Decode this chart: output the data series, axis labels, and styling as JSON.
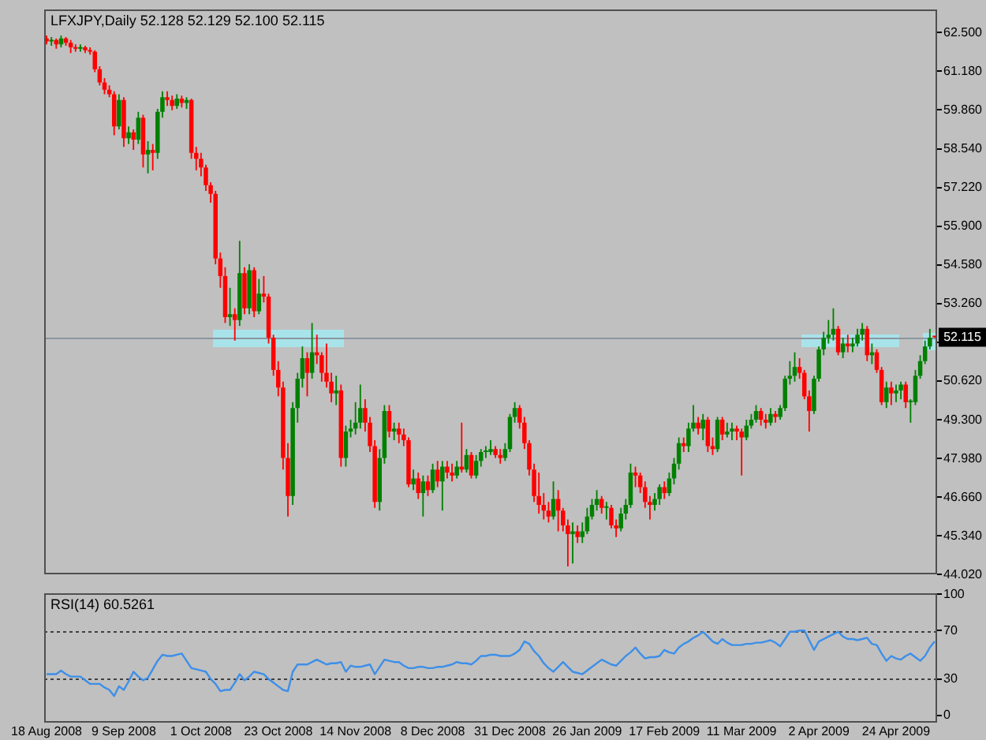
{
  "chart_data": [
    {
      "type": "candlestick",
      "title": "LFXJPY,Daily 52.128 52.129 52.100 52.115",
      "categories": [
        null,
        null,
        null,
        null,
        null,
        null,
        null,
        null,
        null,
        null,
        null,
        null,
        null,
        null,
        null,
        null,
        null,
        null,
        null,
        null,
        null,
        null,
        null,
        null,
        null,
        null,
        null,
        null,
        null,
        null,
        null,
        null,
        null,
        null,
        null,
        null,
        null,
        null,
        null,
        null,
        null,
        null,
        null,
        null,
        null,
        null,
        null,
        null,
        null,
        null,
        null,
        null,
        null,
        null,
        null,
        null,
        null,
        null,
        null,
        null,
        null,
        null,
        null,
        null,
        null,
        null,
        null,
        null,
        null,
        null,
        null,
        null,
        null,
        null,
        null,
        null,
        null,
        null,
        null,
        null,
        null,
        null,
        null,
        null,
        null,
        null,
        null,
        null,
        null,
        null,
        null,
        null,
        null,
        null,
        null,
        null,
        null,
        null,
        null,
        null,
        null,
        null,
        null,
        null,
        null,
        null,
        null,
        null,
        null,
        null,
        null,
        null,
        null,
        null,
        null,
        null,
        null,
        null,
        null,
        null,
        null,
        null,
        null,
        null,
        null,
        null,
        null,
        null,
        null,
        null,
        null,
        null,
        null,
        null,
        null,
        null,
        null,
        null,
        null,
        null,
        null,
        null,
        null,
        null,
        null,
        null,
        null,
        null,
        null,
        null,
        null,
        null,
        null,
        null,
        null,
        null,
        null,
        null,
        null,
        null,
        null,
        null,
        null,
        null,
        null,
        null,
        null,
        null,
        null,
        null,
        null,
        null,
        null,
        null,
        null,
        null,
        null,
        null,
        null,
        null,
        null,
        null,
        null,
        null,
        null
      ],
      "ohlc": [
        [
          62.3,
          62.4,
          62.1,
          62.2
        ],
        [
          62.2,
          62.35,
          62.05,
          62.25
        ],
        [
          62.25,
          62.3,
          61.95,
          62.1
        ],
        [
          62.1,
          62.4,
          62.0,
          62.3
        ],
        [
          62.3,
          62.35,
          62.05,
          62.15
        ],
        [
          62.15,
          62.25,
          61.8,
          62.0
        ],
        [
          62.0,
          62.1,
          61.85,
          61.95
        ],
        [
          61.95,
          62.1,
          61.85,
          62.0
        ],
        [
          62.0,
          62.05,
          61.8,
          61.9
        ],
        [
          61.9,
          62.0,
          61.75,
          61.85
        ],
        [
          61.85,
          61.9,
          61.15,
          61.25
        ],
        [
          61.25,
          61.35,
          60.7,
          60.8
        ],
        [
          60.8,
          60.95,
          60.4,
          60.55
        ],
        [
          60.55,
          60.7,
          60.3,
          60.4
        ],
        [
          60.4,
          60.5,
          59.0,
          59.3
        ],
        [
          59.3,
          60.4,
          59.2,
          60.2
        ],
        [
          60.2,
          60.3,
          58.6,
          58.9
        ],
        [
          58.9,
          59.3,
          58.7,
          59.1
        ],
        [
          59.1,
          59.2,
          58.5,
          58.85
        ],
        [
          58.85,
          59.8,
          58.7,
          59.6
        ],
        [
          59.6,
          59.7,
          57.9,
          58.35
        ],
        [
          58.35,
          58.8,
          57.7,
          58.5
        ],
        [
          58.5,
          58.7,
          57.8,
          58.4
        ],
        [
          58.4,
          59.9,
          58.2,
          59.8
        ],
        [
          59.8,
          60.5,
          59.6,
          60.3
        ],
        [
          60.3,
          60.5,
          60.0,
          60.2
        ],
        [
          60.2,
          60.35,
          59.85,
          60.0
        ],
        [
          60.0,
          60.4,
          59.9,
          60.25
        ],
        [
          60.25,
          60.35,
          59.95,
          60.1
        ],
        [
          60.1,
          60.3,
          59.9,
          60.2
        ],
        [
          60.2,
          60.25,
          58.2,
          58.4
        ],
        [
          58.4,
          58.6,
          57.8,
          58.2
        ],
        [
          58.2,
          58.4,
          57.6,
          57.9
        ],
        [
          57.9,
          58.0,
          57.1,
          57.3
        ],
        [
          57.3,
          57.4,
          56.7,
          57.0
        ],
        [
          57.0,
          57.1,
          54.6,
          54.8
        ],
        [
          54.8,
          55.0,
          53.8,
          54.2
        ],
        [
          54.2,
          54.5,
          52.6,
          52.8
        ],
        [
          52.8,
          53.8,
          52.5,
          52.9
        ],
        [
          52.9,
          53.1,
          52.0,
          52.7
        ],
        [
          52.7,
          55.4,
          52.5,
          54.3
        ],
        [
          54.3,
          54.5,
          52.9,
          53.1
        ],
        [
          53.1,
          54.6,
          52.9,
          54.4
        ],
        [
          54.4,
          54.5,
          52.8,
          53.0
        ],
        [
          53.0,
          54.1,
          52.9,
          53.6
        ],
        [
          53.6,
          54.2,
          53.3,
          53.5
        ],
        [
          53.5,
          53.6,
          51.9,
          52.1
        ],
        [
          52.1,
          52.2,
          50.8,
          51.0
        ],
        [
          51.0,
          51.3,
          50.1,
          50.4
        ],
        [
          50.4,
          50.6,
          47.6,
          48.0
        ],
        [
          48.0,
          48.5,
          46.0,
          46.7
        ],
        [
          46.7,
          49.9,
          46.4,
          49.7
        ],
        [
          49.7,
          50.9,
          49.2,
          50.7
        ],
        [
          50.7,
          51.8,
          50.4,
          51.4
        ],
        [
          51.4,
          51.6,
          50.1,
          50.9
        ],
        [
          50.9,
          52.6,
          50.7,
          51.6
        ],
        [
          51.6,
          52.2,
          51.2,
          51.5
        ],
        [
          51.5,
          51.6,
          50.6,
          50.9
        ],
        [
          50.9,
          51.9,
          50.4,
          50.6
        ],
        [
          50.6,
          50.9,
          49.9,
          50.2
        ],
        [
          50.2,
          50.8,
          49.8,
          50.3
        ],
        [
          50.3,
          50.5,
          47.7,
          48.0
        ],
        [
          48.0,
          49.1,
          47.7,
          48.9
        ],
        [
          48.9,
          49.3,
          48.7,
          49.0
        ],
        [
          49.0,
          49.9,
          48.8,
          49.2
        ],
        [
          49.2,
          50.5,
          49.0,
          49.7
        ],
        [
          49.7,
          50.0,
          48.9,
          49.2
        ],
        [
          49.2,
          49.4,
          48.2,
          48.4
        ],
        [
          48.4,
          48.6,
          46.3,
          46.5
        ],
        [
          46.5,
          48.3,
          46.2,
          48.0
        ],
        [
          48.0,
          49.8,
          47.8,
          49.6
        ],
        [
          49.6,
          49.8,
          48.7,
          48.9
        ],
        [
          48.9,
          49.2,
          48.6,
          49.0
        ],
        [
          49.0,
          49.2,
          48.5,
          48.8
        ],
        [
          48.8,
          49.0,
          48.4,
          48.6
        ],
        [
          48.6,
          48.7,
          47.0,
          47.1
        ],
        [
          47.1,
          47.6,
          46.9,
          47.3
        ],
        [
          47.3,
          47.5,
          46.6,
          46.8
        ],
        [
          46.8,
          47.4,
          46.0,
          47.2
        ],
        [
          47.2,
          47.4,
          46.7,
          46.9
        ],
        [
          46.9,
          47.8,
          46.8,
          47.6
        ],
        [
          47.6,
          47.9,
          47.0,
          47.2
        ],
        [
          47.2,
          47.9,
          46.2,
          47.7
        ],
        [
          47.7,
          47.9,
          47.3,
          47.5
        ],
        [
          47.5,
          47.8,
          47.2,
          47.4
        ],
        [
          47.4,
          47.9,
          47.3,
          47.7
        ],
        [
          47.7,
          49.2,
          47.5,
          47.6
        ],
        [
          47.6,
          48.3,
          47.5,
          48.1
        ],
        [
          48.1,
          48.2,
          47.3,
          47.4
        ],
        [
          47.4,
          48.1,
          47.3,
          47.9
        ],
        [
          47.9,
          48.3,
          47.7,
          48.2
        ],
        [
          48.2,
          48.4,
          48.0,
          48.25
        ],
        [
          48.2,
          48.6,
          48.1,
          48.3
        ],
        [
          48.3,
          48.4,
          48.0,
          48.1
        ],
        [
          48.1,
          48.3,
          47.8,
          48.0
        ],
        [
          48.0,
          48.5,
          47.9,
          48.3
        ],
        [
          48.3,
          49.5,
          48.2,
          49.4
        ],
        [
          49.4,
          49.9,
          49.2,
          49.7
        ],
        [
          49.7,
          49.8,
          49.0,
          49.2
        ],
        [
          49.2,
          49.4,
          48.3,
          48.5
        ],
        [
          48.5,
          48.6,
          47.4,
          47.6
        ],
        [
          47.6,
          47.8,
          46.5,
          46.7
        ],
        [
          46.7,
          47.5,
          46.1,
          46.4
        ],
        [
          46.4,
          46.8,
          45.9,
          46.2
        ],
        [
          46.2,
          46.5,
          45.8,
          46.0
        ],
        [
          46.0,
          47.2,
          45.9,
          46.6
        ],
        [
          46.6,
          46.9,
          45.5,
          46.2
        ],
        [
          46.2,
          46.3,
          45.5,
          45.7
        ],
        [
          45.7,
          45.9,
          44.3,
          45.4
        ],
        [
          45.4,
          45.8,
          44.4,
          45.5
        ],
        [
          45.5,
          45.7,
          45.1,
          45.3
        ],
        [
          45.3,
          45.8,
          45.1,
          45.5
        ],
        [
          45.5,
          46.3,
          45.4,
          46.0
        ],
        [
          46.0,
          46.6,
          45.9,
          46.4
        ],
        [
          46.4,
          46.9,
          46.2,
          46.6
        ],
        [
          46.6,
          46.7,
          46.1,
          46.3
        ],
        [
          46.3,
          46.5,
          45.9,
          46.35
        ],
        [
          46.3,
          46.4,
          45.6,
          45.7
        ],
        [
          45.7,
          45.9,
          45.3,
          45.6
        ],
        [
          45.6,
          46.3,
          45.5,
          46.1
        ],
        [
          46.1,
          46.6,
          45.9,
          46.4
        ],
        [
          46.4,
          47.8,
          46.3,
          47.5
        ],
        [
          47.5,
          47.7,
          47.0,
          47.4
        ],
        [
          47.4,
          47.5,
          46.8,
          47.0
        ],
        [
          47.0,
          47.2,
          46.3,
          46.5
        ],
        [
          46.5,
          46.7,
          45.9,
          46.4
        ],
        [
          46.4,
          46.8,
          46.2,
          46.6
        ],
        [
          46.6,
          47.1,
          46.4,
          47.0
        ],
        [
          47.0,
          47.2,
          46.6,
          46.8
        ],
        [
          46.8,
          47.5,
          46.7,
          47.3
        ],
        [
          47.3,
          48.0,
          47.1,
          47.8
        ],
        [
          47.8,
          48.7,
          47.6,
          48.5
        ],
        [
          48.5,
          48.7,
          48.2,
          48.4
        ],
        [
          48.4,
          49.2,
          48.2,
          49.0
        ],
        [
          49.0,
          49.8,
          48.9,
          49.2
        ],
        [
          49.2,
          49.4,
          48.8,
          49.0
        ],
        [
          49.0,
          49.5,
          48.6,
          49.3
        ],
        [
          49.3,
          49.4,
          48.2,
          48.4
        ],
        [
          48.4,
          48.7,
          48.1,
          48.3
        ],
        [
          48.3,
          49.4,
          48.2,
          49.3
        ],
        [
          49.3,
          49.4,
          48.6,
          48.8
        ],
        [
          48.8,
          49.2,
          48.7,
          48.9
        ],
        [
          48.9,
          49.2,
          48.6,
          49.0
        ],
        [
          49.0,
          49.1,
          48.6,
          48.9
        ],
        [
          48.9,
          49.0,
          47.4,
          48.7
        ],
        [
          48.7,
          49.3,
          48.6,
          49.1
        ],
        [
          49.1,
          49.5,
          49.0,
          49.3
        ],
        [
          49.3,
          49.8,
          49.2,
          49.6
        ],
        [
          49.6,
          49.7,
          49.1,
          49.3
        ],
        [
          49.3,
          49.5,
          49.0,
          49.2
        ],
        [
          49.2,
          49.7,
          49.1,
          49.5
        ],
        [
          49.5,
          49.6,
          49.2,
          49.4
        ],
        [
          49.4,
          49.8,
          49.3,
          49.7
        ],
        [
          49.7,
          50.8,
          49.6,
          50.7
        ],
        [
          50.7,
          51.3,
          50.5,
          50.8
        ],
        [
          50.8,
          51.6,
          50.6,
          51.1
        ],
        [
          51.1,
          51.4,
          50.7,
          50.9
        ],
        [
          50.9,
          51.0,
          50.0,
          50.1
        ],
        [
          50.1,
          50.3,
          48.9,
          49.6
        ],
        [
          49.6,
          50.8,
          49.5,
          50.7
        ],
        [
          50.7,
          51.8,
          50.6,
          51.7
        ],
        [
          51.7,
          52.3,
          51.5,
          52.1
        ],
        [
          52.1,
          52.7,
          51.9,
          52.2
        ],
        [
          52.2,
          53.1,
          52.0,
          52.4
        ],
        [
          52.4,
          52.5,
          51.5,
          51.6
        ],
        [
          51.6,
          52.1,
          51.4,
          51.9
        ],
        [
          51.9,
          52.2,
          51.6,
          51.8
        ],
        [
          51.8,
          52.1,
          51.6,
          51.9
        ],
        [
          51.9,
          52.4,
          51.8,
          52.2
        ],
        [
          52.2,
          52.6,
          52.0,
          52.4
        ],
        [
          52.4,
          52.5,
          51.3,
          51.5
        ],
        [
          51.5,
          51.9,
          51.2,
          51.6
        ],
        [
          51.6,
          51.7,
          50.9,
          51.0
        ],
        [
          51.0,
          51.1,
          49.8,
          49.9
        ],
        [
          49.9,
          50.6,
          49.7,
          50.4
        ],
        [
          50.4,
          50.6,
          49.8,
          50.2
        ],
        [
          50.2,
          50.5,
          49.9,
          50.3
        ],
        [
          50.3,
          50.6,
          50.0,
          50.5
        ],
        [
          50.5,
          50.6,
          49.7,
          49.9
        ],
        [
          49.9,
          50.0,
          49.2,
          49.95
        ],
        [
          49.9,
          51.0,
          49.8,
          50.8
        ],
        [
          50.8,
          51.5,
          50.7,
          51.3
        ],
        [
          51.3,
          52.0,
          51.2,
          51.8
        ],
        [
          51.8,
          52.4,
          51.7,
          52.1
        ],
        [
          52.128,
          52.129,
          52.1,
          52.115
        ]
      ],
      "colors": [
        "#ff0000",
        "#008000",
        "#ff0000",
        "#008000",
        "#ff0000",
        "#ff0000",
        "#ff0000",
        "#008000",
        "#ff0000",
        "#ff0000",
        "#ff0000",
        "#ff0000",
        "#ff0000",
        "#ff0000",
        "#ff0000",
        "#008000",
        "#ff0000",
        "#008000",
        "#ff0000",
        "#008000",
        "#ff0000",
        "#008000",
        "#ff0000",
        "#008000",
        "#008000",
        "#ff0000",
        "#ff0000",
        "#008000",
        "#ff0000",
        "#008000",
        "#ff0000",
        "#ff0000",
        "#ff0000",
        "#ff0000",
        "#ff0000",
        "#ff0000",
        "#ff0000",
        "#ff0000",
        "#008000",
        "#ff0000",
        "#008000",
        "#ff0000",
        "#008000",
        "#ff0000",
        "#008000",
        "#ff0000",
        "#ff0000",
        "#ff0000",
        "#ff0000",
        "#ff0000",
        "#ff0000",
        "#008000",
        "#008000",
        "#008000",
        "#ff0000",
        "#008000",
        "#ff0000",
        "#ff0000",
        "#ff0000",
        "#ff0000",
        "#008000",
        "#ff0000",
        "#008000",
        "#008000",
        "#008000",
        "#008000",
        "#ff0000",
        "#ff0000",
        "#ff0000",
        "#008000",
        "#008000",
        "#ff0000",
        "#008000",
        "#ff0000",
        "#ff0000",
        "#ff0000",
        "#008000",
        "#ff0000",
        "#008000",
        "#ff0000",
        "#008000",
        "#ff0000",
        "#008000",
        "#ff0000",
        "#ff0000",
        "#008000",
        "#ff0000",
        "#008000",
        "#ff0000",
        "#008000",
        "#008000",
        "#008000",
        "#008000",
        "#ff0000",
        "#ff0000",
        "#008000",
        "#008000",
        "#008000",
        "#ff0000",
        "#ff0000",
        "#ff0000",
        "#ff0000",
        "#ff0000",
        "#ff0000",
        "#ff0000",
        "#008000",
        "#ff0000",
        "#ff0000",
        "#ff0000",
        "#008000",
        "#ff0000",
        "#008000",
        "#008000",
        "#008000",
        "#008000",
        "#ff0000",
        "#008000",
        "#ff0000",
        "#ff0000",
        "#008000",
        "#008000",
        "#008000",
        "#ff0000",
        "#ff0000",
        "#ff0000",
        "#ff0000",
        "#008000",
        "#008000",
        "#ff0000",
        "#008000",
        "#008000",
        "#008000",
        "#ff0000",
        "#008000",
        "#008000",
        "#ff0000",
        "#008000",
        "#ff0000",
        "#ff0000",
        "#008000",
        "#ff0000",
        "#008000",
        "#008000",
        "#ff0000",
        "#ff0000",
        "#008000",
        "#008000",
        "#008000",
        "#ff0000",
        "#ff0000",
        "#008000",
        "#ff0000",
        "#008000",
        "#008000",
        "#008000",
        "#008000",
        "#ff0000",
        "#ff0000",
        "#ff0000",
        "#008000",
        "#008000",
        "#008000",
        "#008000",
        "#008000",
        "#ff0000",
        "#008000",
        "#ff0000",
        "#008000",
        "#008000",
        "#008000",
        "#ff0000",
        "#008000",
        "#ff0000",
        "#ff0000",
        "#008000",
        "#ff0000",
        "#008000",
        "#008000",
        "#ff0000",
        "#008000",
        "#008000",
        "#008000",
        "#008000",
        "#008000",
        "#ff0000"
      ],
      "ylim": [
        44.02,
        63.3
      ],
      "yticks": [
        {
          "value": 62.5,
          "label": "62.500"
        },
        {
          "value": 61.18,
          "label": "61.180"
        },
        {
          "value": 59.86,
          "label": "59.860"
        },
        {
          "value": 58.54,
          "label": "58.540"
        },
        {
          "value": 57.22,
          "label": "57.220"
        },
        {
          "value": 55.9,
          "label": "55.900"
        },
        {
          "value": 54.58,
          "label": "54.580"
        },
        {
          "value": 53.26,
          "label": "53.260"
        },
        {
          "value": 51.94,
          "label": null
        },
        {
          "value": 50.62,
          "label": "50.620"
        },
        {
          "value": 49.3,
          "label": "49.300"
        },
        {
          "value": 47.98,
          "label": "47.980"
        },
        {
          "value": 46.66,
          "label": "46.660"
        },
        {
          "value": 45.34,
          "label": "45.340"
        },
        {
          "value": 44.02,
          "label": "44.020"
        }
      ],
      "ref_lines": [
        {
          "axis": "y",
          "value": 52.115,
          "label": "52.115",
          "color": "#8c96a0"
        }
      ],
      "tick_labels": "y"
    },
    {
      "type": "line",
      "title": "RSI(14) 60.5261",
      "categories": [
        "18 Aug 2008",
        null,
        null,
        null,
        null,
        null,
        null,
        null,
        null,
        null,
        null,
        null,
        null,
        null,
        null,
        null,
        "9 Sep 2008",
        null,
        null,
        null,
        null,
        null,
        null,
        null,
        null,
        null,
        null,
        null,
        null,
        null,
        null,
        null,
        "1 Oct 2008",
        null,
        null,
        null,
        null,
        null,
        null,
        null,
        null,
        null,
        null,
        null,
        null,
        null,
        null,
        null,
        "23 Oct 2008",
        null,
        null,
        null,
        null,
        null,
        null,
        null,
        null,
        null,
        null,
        null,
        null,
        null,
        null,
        null,
        "14 Nov 2008",
        null,
        null,
        null,
        null,
        null,
        null,
        null,
        null,
        null,
        null,
        null,
        null,
        null,
        null,
        null,
        "8 Dec 2008",
        null,
        null,
        null,
        null,
        null,
        null,
        null,
        null,
        null,
        null,
        null,
        null,
        null,
        null,
        null,
        "31 Dec 2008",
        null,
        null,
        null,
        null,
        null,
        null,
        null,
        null,
        null,
        null,
        null,
        null,
        null,
        null,
        null,
        "26 Jan 2009",
        null,
        null,
        null,
        null,
        null,
        null,
        null,
        null,
        null,
        null,
        null,
        null,
        null,
        null,
        null,
        "17 Feb 2009",
        null,
        null,
        null,
        null,
        null,
        null,
        null,
        null,
        null,
        null,
        null,
        null,
        null,
        null,
        null,
        "11 Mar 2009",
        null,
        null,
        null,
        null,
        null,
        null,
        null,
        null,
        null,
        null,
        null,
        null,
        null,
        null,
        null,
        "2 Apr 2009",
        null,
        null,
        null,
        null,
        null,
        null,
        null,
        null,
        null,
        null,
        null,
        null,
        null,
        null,
        null,
        "24 Apr 2009",
        null,
        null,
        null,
        null,
        null,
        null,
        null,
        null
      ],
      "series": [
        {
          "color": "#3d8fe8",
          "values": [
            34,
            34,
            34,
            37,
            34,
            32,
            32,
            32,
            29,
            26,
            26,
            26,
            23,
            21,
            16,
            24,
            21,
            28,
            36,
            32,
            29,
            31,
            38,
            45,
            50,
            49,
            49,
            50,
            51,
            45,
            39,
            38,
            37,
            36,
            30,
            26,
            20,
            21,
            21,
            27,
            34,
            29,
            32,
            36,
            35,
            34,
            30,
            27,
            24,
            21,
            20,
            36,
            42,
            42,
            42,
            44,
            46,
            44,
            42,
            43,
            43,
            44,
            36,
            41,
            40,
            40,
            41,
            42,
            34,
            40,
            46,
            45,
            44,
            44,
            41,
            39,
            39,
            40,
            40,
            39,
            39,
            40,
            40,
            41,
            42,
            44,
            43,
            43,
            42,
            45,
            49,
            49,
            50,
            50,
            49,
            49,
            49,
            51,
            54,
            61,
            59,
            53,
            49,
            43,
            39,
            36,
            40,
            44,
            40,
            36,
            35,
            34,
            37,
            40,
            43,
            46,
            44,
            42,
            41,
            45,
            49,
            52,
            56,
            51,
            47,
            48,
            48,
            49,
            54,
            52,
            51,
            56,
            59,
            61,
            64,
            66,
            69,
            65,
            61,
            59,
            63,
            60,
            58,
            58,
            58,
            59,
            59,
            60,
            60,
            61,
            62,
            60,
            57,
            63,
            69,
            69,
            70,
            70,
            62,
            54,
            61,
            63,
            65,
            67,
            69,
            65,
            63,
            63,
            62,
            63,
            64,
            59,
            58,
            51,
            45,
            49,
            47,
            46,
            49,
            51,
            48,
            45,
            49,
            56,
            61
          ]
        }
      ],
      "ylim": [
        -6,
        101
      ],
      "yticks": [
        100,
        70,
        30,
        0
      ],
      "ref_lines": [
        {
          "axis": "y",
          "value": 70,
          "line_style": "dotted",
          "color": "#404040"
        },
        {
          "axis": "y",
          "value": 30,
          "line_style": "dotted",
          "color": "#404040"
        }
      ],
      "marker": "none"
    }
  ]
}
